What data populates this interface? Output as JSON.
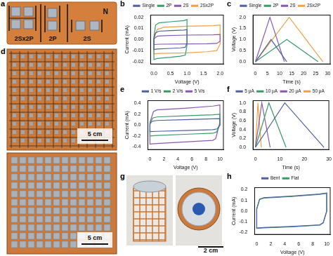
{
  "figure": {
    "panels": [
      {
        "label": "a",
        "photo_texts": [
          "2Sx2P",
          "2P",
          "2S",
          "N"
        ]
      },
      {
        "label": "d",
        "scale_bars": [
          "5 cm",
          "5 cm"
        ]
      },
      {
        "label": "g",
        "scale_bar": "2 cm"
      }
    ]
  },
  "chart_data": [
    {
      "panel": "b",
      "type": "line",
      "x_label": "Voltage (V)",
      "y_label": "Current (mA)",
      "xlim": [
        -0.1,
        2.1
      ],
      "xticks": [
        {
          "value": 0,
          "label": "0.0"
        },
        0.5,
        {
          "value": 1,
          "label": "1.0"
        },
        1.5,
        {
          "value": 2,
          "label": "2.0"
        }
      ],
      "ylim": [
        -0.022,
        0.022
      ],
      "yticks": [
        -0.02,
        -0.01,
        {
          "value": 0,
          "label": "0.00"
        },
        0.01,
        0.02
      ],
      "grid": false,
      "legend": "top",
      "series": [
        {
          "name": "Single",
          "color": "#5060a0",
          "x": [
            0,
            0.05,
            0.15,
            0.5,
            0.9,
            1.0,
            1.0,
            0.95,
            0.8,
            0.5,
            0.1,
            0,
            0
          ],
          "values": [
            0.001,
            0.006,
            0.0075,
            0.008,
            0.0085,
            0.009,
            -0.003,
            -0.007,
            -0.0075,
            -0.008,
            -0.0085,
            -0.009,
            0.001
          ]
        },
        {
          "name": "2P",
          "color": "#3a9a6a",
          "x": [
            0,
            0.05,
            0.15,
            0.5,
            0.9,
            1.0,
            1.0,
            0.95,
            0.8,
            0.5,
            0.1,
            0,
            0
          ],
          "values": [
            0.002,
            0.013,
            0.015,
            0.016,
            0.017,
            0.018,
            -0.005,
            -0.014,
            -0.015,
            -0.016,
            -0.017,
            -0.018,
            0.002
          ]
        },
        {
          "name": "2S",
          "color": "#8a58b0",
          "x": [
            0,
            0.1,
            0.3,
            1.0,
            1.8,
            2.0,
            2.0,
            1.9,
            1.6,
            1.0,
            0.2,
            0,
            0
          ],
          "values": [
            0.0005,
            0.003,
            0.0035,
            0.004,
            0.0042,
            0.0045,
            -0.0015,
            -0.0035,
            -0.0038,
            -0.004,
            -0.0042,
            -0.0045,
            0.0005
          ]
        },
        {
          "name": "2Sx2P",
          "color": "#f0a040",
          "x": [
            0,
            0.1,
            0.3,
            1.0,
            1.8,
            2.0,
            2.0,
            1.9,
            1.6,
            1.0,
            0.2,
            0,
            0
          ],
          "values": [
            0.001,
            0.009,
            0.011,
            0.012,
            0.0125,
            0.013,
            -0.004,
            -0.01,
            -0.011,
            -0.012,
            -0.0125,
            -0.013,
            0.001
          ]
        }
      ]
    },
    {
      "panel": "c",
      "type": "line",
      "x_label": "Time (s)",
      "y_label": "Voltage (V)",
      "xlim": [
        -1,
        31
      ],
      "xticks": [
        0,
        5,
        10,
        15,
        20,
        25,
        30
      ],
      "ylim": [
        -0.1,
        2.1
      ],
      "yticks": [
        {
          "value": 0,
          "label": "0.0"
        },
        0.5,
        {
          "value": 1,
          "label": "1.0"
        },
        1.5,
        {
          "value": 2,
          "label": "2.0"
        }
      ],
      "grid": false,
      "legend": "top",
      "series": [
        {
          "name": "Single",
          "color": "#5060a0",
          "x": [
            0,
            6.5,
            13
          ],
          "values": [
            0,
            1.0,
            0
          ]
        },
        {
          "name": "2P",
          "color": "#3a9a6a",
          "x": [
            0,
            13,
            26
          ],
          "values": [
            0,
            1.0,
            0
          ]
        },
        {
          "name": "2S",
          "color": "#8a58b0",
          "x": [
            0,
            6,
            12
          ],
          "values": [
            0,
            2.0,
            0
          ]
        },
        {
          "name": "2Sx2P",
          "color": "#f0a040",
          "x": [
            0,
            14,
            28
          ],
          "values": [
            0,
            2.0,
            0
          ]
        }
      ]
    },
    {
      "panel": "e",
      "type": "line",
      "x_label": "Voltage (V)",
      "y_label": "Current (mA)",
      "xlim": [
        -0.3,
        10.5
      ],
      "xticks": [
        0,
        2,
        4,
        6,
        8,
        10
      ],
      "ylim": [
        -0.45,
        0.45
      ],
      "yticks": [
        -0.4,
        -0.2,
        {
          "value": 0,
          "label": "0.0"
        },
        0.2,
        0.4
      ],
      "grid": false,
      "legend": "top",
      "series": [
        {
          "name": "1 V/s",
          "color": "#5060a0",
          "x": [
            0,
            0.3,
            1,
            5,
            9,
            10,
            10,
            9.6,
            9,
            5,
            1,
            0,
            0
          ],
          "values": [
            0.02,
            0.07,
            0.085,
            0.1,
            0.115,
            0.12,
            0.0,
            -0.07,
            -0.085,
            -0.1,
            -0.115,
            -0.12,
            0.02
          ]
        },
        {
          "name": "2 V/s",
          "color": "#3a9a6a",
          "x": [
            0,
            0.4,
            1,
            5,
            9,
            10,
            10,
            9.5,
            9,
            5,
            1,
            0,
            0
          ],
          "values": [
            0.03,
            0.13,
            0.15,
            0.17,
            0.19,
            0.2,
            0.0,
            -0.13,
            -0.15,
            -0.17,
            -0.19,
            -0.2,
            0.03
          ]
        },
        {
          "name": "5 V/s",
          "color": "#8a58b0",
          "x": [
            0,
            0.5,
            1,
            5,
            9,
            10,
            10,
            9.4,
            9,
            5,
            1,
            0,
            0
          ],
          "values": [
            0.05,
            0.25,
            0.28,
            0.31,
            0.35,
            0.37,
            0.05,
            -0.25,
            -0.28,
            -0.31,
            -0.34,
            -0.35,
            0.05
          ]
        }
      ]
    },
    {
      "panel": "f",
      "type": "line",
      "x_label": "Time (s)",
      "y_label": "Voltage (V)",
      "xlim": [
        -1,
        30
      ],
      "xticks": [
        0,
        10,
        20,
        30
      ],
      "ylim": [
        -0.05,
        1.05
      ],
      "yticks": [
        {
          "value": 0,
          "label": "0.0"
        },
        0.2,
        0.4,
        0.6,
        0.8,
        {
          "value": 1,
          "label": "1.0"
        }
      ],
      "grid": false,
      "legend": "top",
      "series": [
        {
          "name": "5 μA",
          "color": "#5060a0",
          "x": [
            0,
            12,
            28
          ],
          "values": [
            0,
            1.0,
            0
          ]
        },
        {
          "name": "10 μA",
          "color": "#3a9a6a",
          "x": [
            0,
            5.5,
            12.5
          ],
          "values": [
            0,
            1.0,
            0
          ]
        },
        {
          "name": "20 μA",
          "color": "#8a58b0",
          "x": [
            0,
            2.6,
            6
          ],
          "values": [
            0,
            1.0,
            0
          ]
        },
        {
          "name": "50 μA",
          "color": "#f0a040",
          "x": [
            0,
            1,
            2.4
          ],
          "values": [
            0,
            1.0,
            0
          ]
        }
      ]
    },
    {
      "panel": "h",
      "type": "line",
      "x_label": "Voltage (V)",
      "y_label": "Current (mA)",
      "xlim": [
        -0.3,
        10.5
      ],
      "xticks": [
        0,
        2,
        4,
        6,
        8,
        10
      ],
      "ylim": [
        -0.22,
        0.22
      ],
      "yticks": [
        -0.2,
        -0.1,
        {
          "value": 0,
          "label": "0.0"
        },
        0.1,
        0.2
      ],
      "grid": false,
      "legend": "top",
      "series": [
        {
          "name": "Bent",
          "color": "#5060a0",
          "x": [
            0,
            0.4,
            1,
            5,
            9,
            10,
            10,
            9.5,
            9,
            5,
            1,
            0,
            0
          ],
          "values": [
            0.02,
            0.11,
            0.125,
            0.14,
            0.16,
            0.17,
            0.0,
            -0.11,
            -0.13,
            -0.145,
            -0.155,
            -0.16,
            0.02
          ]
        },
        {
          "name": "Flat",
          "color": "#3a9a6a",
          "x": [
            0,
            0.4,
            1,
            5,
            9,
            10,
            10,
            9.5,
            9,
            5,
            1,
            0,
            0
          ],
          "values": [
            0.018,
            0.108,
            0.122,
            0.137,
            0.157,
            0.167,
            -0.003,
            -0.113,
            -0.133,
            -0.148,
            -0.158,
            -0.163,
            0.018
          ]
        }
      ]
    }
  ]
}
